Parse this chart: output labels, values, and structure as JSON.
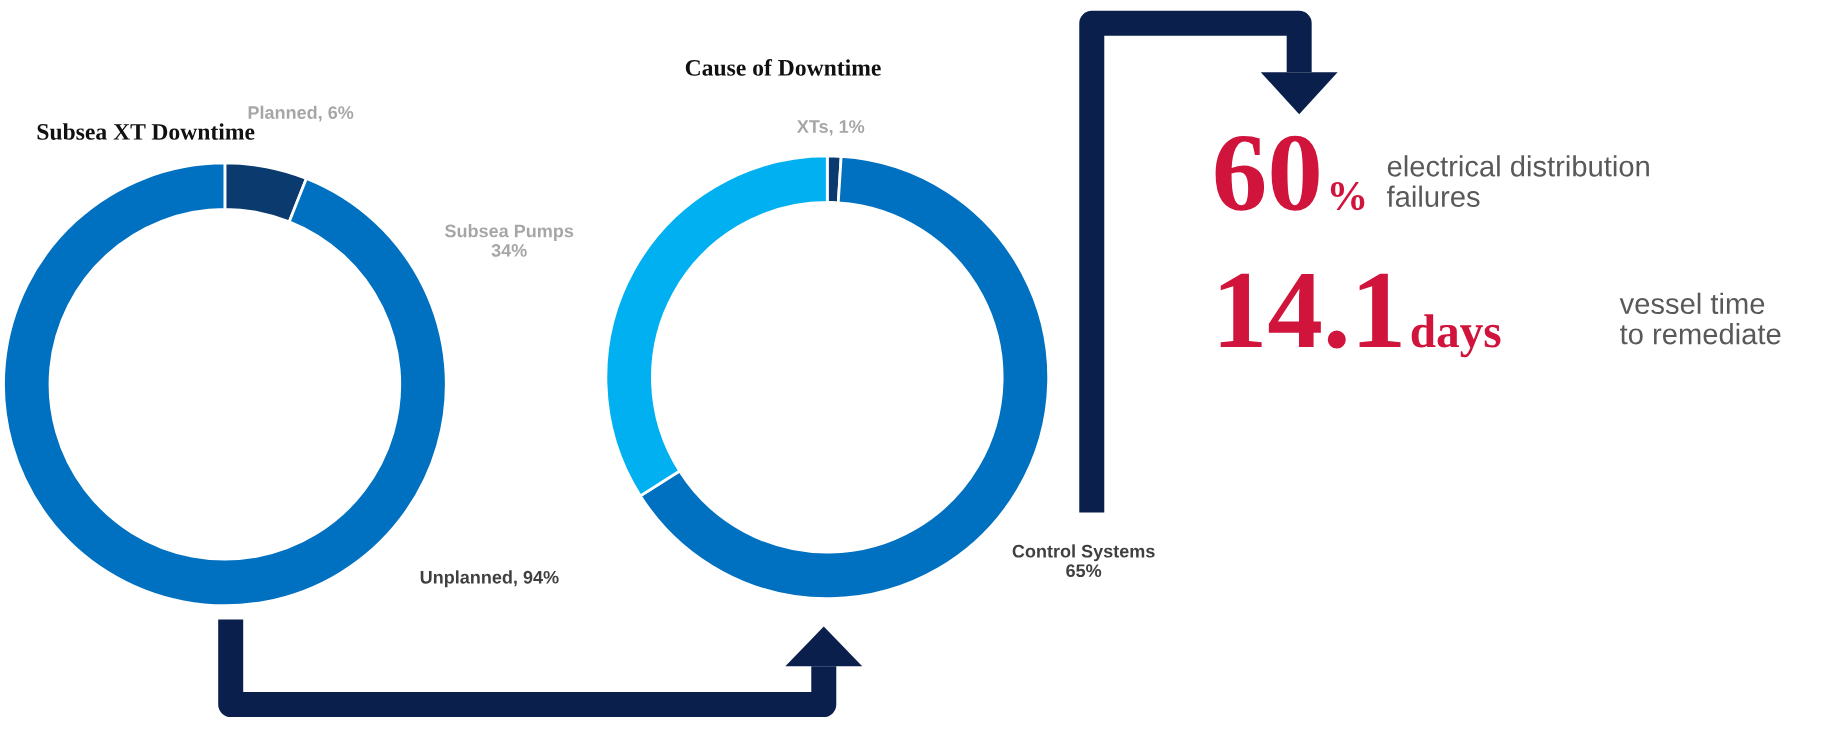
{
  "chart_data": [
    {
      "type": "donut",
      "title": "Subsea XT Downtime",
      "categories": [
        "Planned",
        "Unplanned"
      ],
      "values": [
        6,
        94
      ],
      "value_labels": [
        "6%",
        "94%"
      ],
      "colors": [
        "#0a3a6e",
        "#0070c0"
      ]
    },
    {
      "type": "donut",
      "title": "Cause of Downtime",
      "categories": [
        "XTs",
        "Control Systems",
        "Subsea Pumps"
      ],
      "values": [
        1,
        65,
        34
      ],
      "value_labels": [
        "1%",
        "65%",
        "34%"
      ],
      "colors": [
        "#0a3a6e",
        "#0070c0",
        "#00b0f0"
      ]
    },
    {
      "type": "other",
      "annotations": [
        "60",
        "%",
        "electrical distribution\nfailures",
        "14.1",
        "days",
        "vessel time\nto remediate"
      ]
    }
  ]
}
